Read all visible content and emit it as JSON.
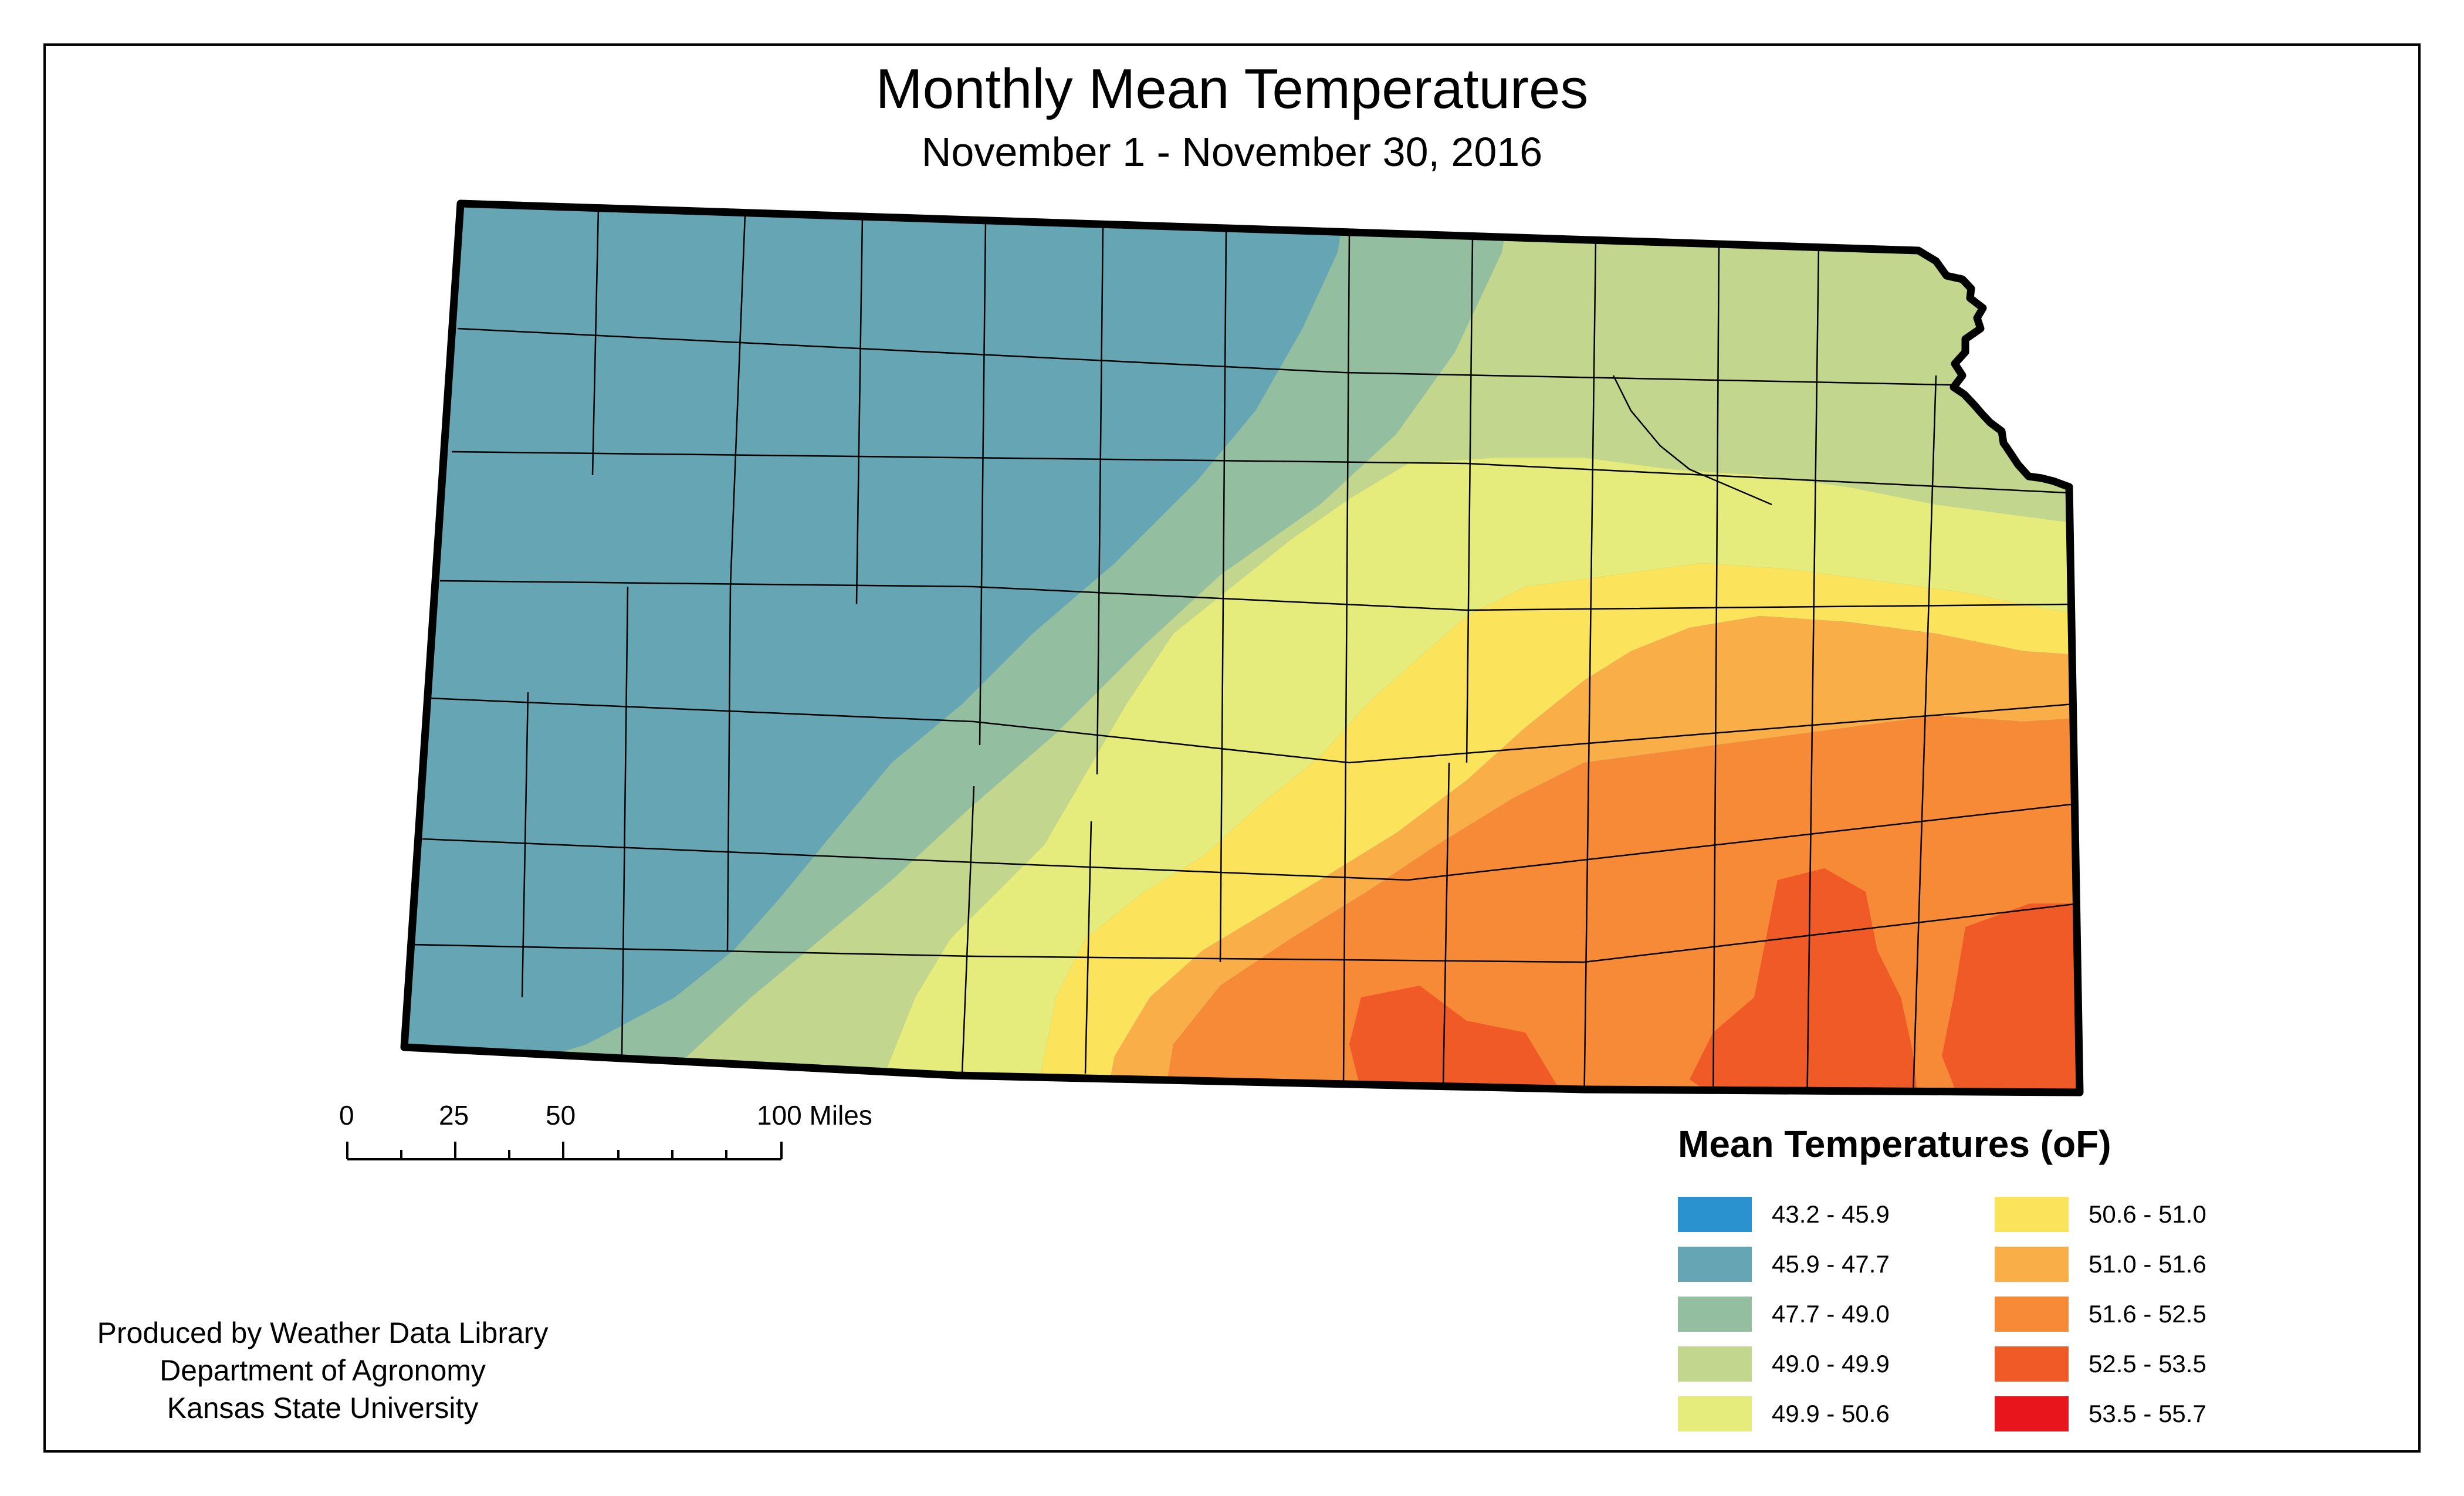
{
  "title": "Monthly Mean Temperatures",
  "subtitle": "November 1 - November 30, 2016",
  "scale_bar": {
    "ticks": [
      "0",
      "25",
      "50",
      "100 Miles"
    ]
  },
  "legend": {
    "title": "Mean Temperatures (oF)",
    "classes": [
      {
        "label": "43.2 - 45.9",
        "color": "#2a93cf"
      },
      {
        "label": "45.9 - 47.7",
        "color": "#65a5b4"
      },
      {
        "label": "47.7 - 49.0",
        "color": "#93bfa0"
      },
      {
        "label": "49.0 - 49.9",
        "color": "#c2d68e"
      },
      {
        "label": "49.9 - 50.6",
        "color": "#e6ec7c"
      },
      {
        "label": "50.6 - 51.0",
        "color": "#fbe35c"
      },
      {
        "label": "51.0 - 51.6",
        "color": "#f9ae48"
      },
      {
        "label": "51.6 - 52.5",
        "color": "#f78a36"
      },
      {
        "label": "52.5 - 53.5",
        "color": "#f05a26"
      },
      {
        "label": "53.5 - 55.7",
        "color": "#e8161c"
      }
    ]
  },
  "credits": {
    "line1": "Produced by Weather Data Library",
    "line2": "Department of Agronomy",
    "line3": "Kansas State University"
  }
}
